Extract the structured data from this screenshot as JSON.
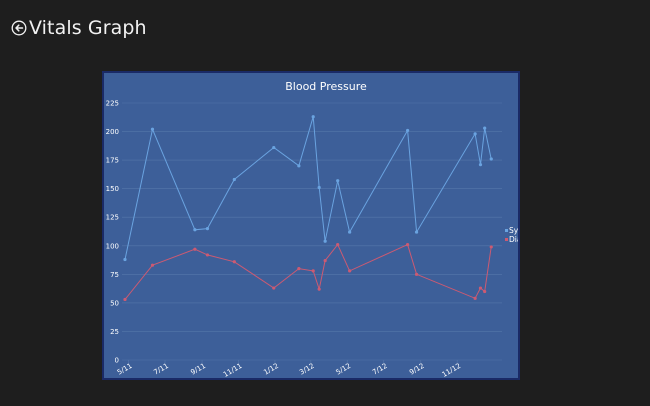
{
  "header": {
    "back_icon": "circle-arrow-left-icon",
    "title": "Vitals Graph"
  },
  "colors": {
    "background": "#1e1e1e",
    "chart_bg": "#3d5f99",
    "chart_border": "#1a2a66",
    "systolic": "#6aa3e0",
    "diastolic": "#cc5a72",
    "grid": "#5577aa"
  },
  "chart_data": {
    "type": "line",
    "title": "Blood Pressure",
    "xlabel": "",
    "ylabel": "",
    "ylim": [
      0,
      225
    ],
    "yticks": [
      0,
      25,
      50,
      75,
      100,
      125,
      150,
      175,
      200,
      225
    ],
    "x_tick_labels": [
      "5/11",
      "7/11",
      "9/11",
      "11/11",
      "1/12",
      "3/12",
      "5/12",
      "7/12",
      "9/12",
      "11/12"
    ],
    "x_ticks": [
      "2011-05-01",
      "2011-07-01",
      "2011-09-01",
      "2011-11-01",
      "2012-01-01",
      "2012-03-01",
      "2012-05-01",
      "2012-07-01",
      "2012-09-01",
      "2012-11-01"
    ],
    "xlim": [
      "2011-04-20",
      "2013-01-15"
    ],
    "grid": true,
    "legend_position": "right",
    "series": [
      {
        "name": "Systolic",
        "points": [
          {
            "x": "2011-04-25",
            "y": 88
          },
          {
            "x": "2011-06-10",
            "y": 202
          },
          {
            "x": "2011-08-20",
            "y": 114
          },
          {
            "x": "2011-09-10",
            "y": 115
          },
          {
            "x": "2011-10-25",
            "y": 158
          },
          {
            "x": "2011-12-30",
            "y": 186
          },
          {
            "x": "2012-02-10",
            "y": 170
          },
          {
            "x": "2012-03-05",
            "y": 213
          },
          {
            "x": "2012-03-15",
            "y": 151
          },
          {
            "x": "2012-03-25",
            "y": 104
          },
          {
            "x": "2012-04-15",
            "y": 157
          },
          {
            "x": "2012-05-05",
            "y": 112
          },
          {
            "x": "2012-08-10",
            "y": 201
          },
          {
            "x": "2012-08-25",
            "y": 112
          },
          {
            "x": "2012-12-01",
            "y": 198
          },
          {
            "x": "2012-12-10",
            "y": 171
          },
          {
            "x": "2012-12-17",
            "y": 203
          },
          {
            "x": "2012-12-28",
            "y": 176
          }
        ]
      },
      {
        "name": "Diastolic",
        "points": [
          {
            "x": "2011-04-25",
            "y": 53
          },
          {
            "x": "2011-06-10",
            "y": 83
          },
          {
            "x": "2011-08-20",
            "y": 97
          },
          {
            "x": "2011-09-10",
            "y": 92
          },
          {
            "x": "2011-10-25",
            "y": 86
          },
          {
            "x": "2011-12-30",
            "y": 63
          },
          {
            "x": "2012-02-10",
            "y": 80
          },
          {
            "x": "2012-03-05",
            "y": 78
          },
          {
            "x": "2012-03-15",
            "y": 62
          },
          {
            "x": "2012-03-25",
            "y": 87
          },
          {
            "x": "2012-04-15",
            "y": 101
          },
          {
            "x": "2012-05-05",
            "y": 78
          },
          {
            "x": "2012-08-10",
            "y": 101
          },
          {
            "x": "2012-08-25",
            "y": 75
          },
          {
            "x": "2012-12-01",
            "y": 54
          },
          {
            "x": "2012-12-10",
            "y": 63
          },
          {
            "x": "2012-12-17",
            "y": 60
          },
          {
            "x": "2012-12-28",
            "y": 99
          }
        ]
      }
    ]
  }
}
